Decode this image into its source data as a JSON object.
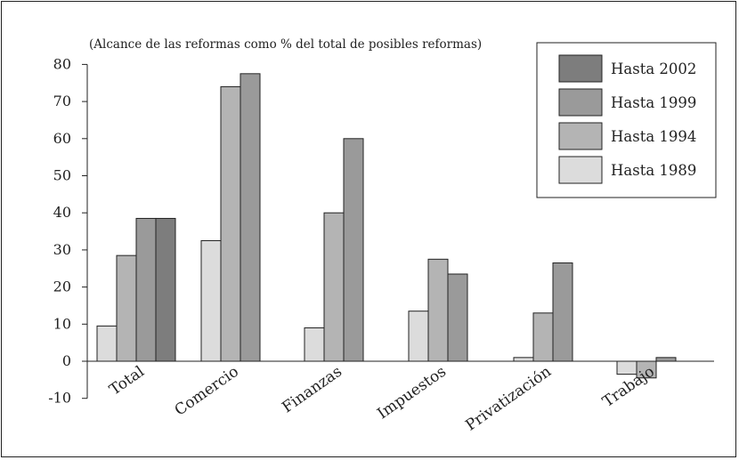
{
  "chart_data": {
    "type": "bar",
    "title": "",
    "subtitle": "(Alcance de las reformas como % del total de posibles reformas)",
    "xlabel": "",
    "ylabel": "",
    "ylim": [
      -10,
      80
    ],
    "yticks": [
      80,
      70,
      60,
      50,
      40,
      30,
      20,
      10,
      0,
      -10
    ],
    "grid": false,
    "legend_position": "top-right",
    "categories": [
      "Total",
      "Comercio",
      "Finanzas",
      "Impuestos",
      "Privatización",
      "Trabajo"
    ],
    "series": [
      {
        "name": "Hasta 1989",
        "color": "#dcdcdc",
        "values": [
          9.5,
          32.5,
          9,
          13.5,
          1,
          -3.5
        ]
      },
      {
        "name": "Hasta 1994",
        "color": "#b4b4b4",
        "values": [
          28.5,
          74,
          40,
          27.5,
          13,
          -4.5
        ]
      },
      {
        "name": "Hasta 1999",
        "color": "#9a9a9a",
        "values": [
          38.5,
          77.5,
          60,
          23.5,
          26.5,
          1
        ]
      },
      {
        "name": "Hasta 2002",
        "color": "#7d7d7d",
        "values": [
          38.5,
          null,
          null,
          null,
          null,
          null
        ]
      }
    ],
    "legend_order": [
      "Hasta 2002",
      "Hasta 1999",
      "Hasta 1994",
      "Hasta 1989"
    ]
  }
}
